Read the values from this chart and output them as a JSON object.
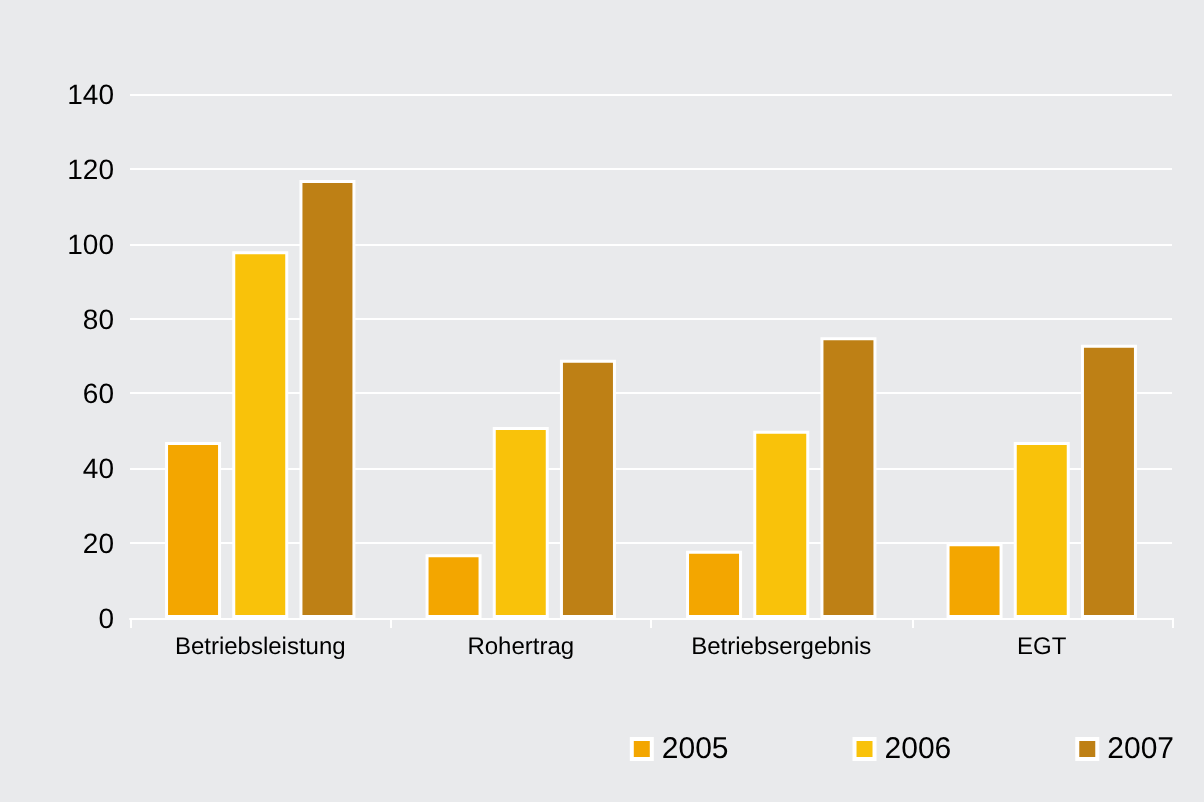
{
  "chart_data": {
    "type": "bar",
    "categories": [
      "Betriebsleistung",
      "Rohertrag",
      "Betriebsergebnis",
      "EGT"
    ],
    "series": [
      {
        "name": "2005",
        "color": "#f3a600",
        "values": [
          47,
          17,
          18,
          20
        ]
      },
      {
        "name": "2006",
        "color": "#f9c20a",
        "values": [
          98,
          51,
          50,
          47
        ]
      },
      {
        "name": "2007",
        "color": "#be8015",
        "values": [
          117,
          69,
          75,
          73
        ]
      }
    ],
    "ylim": [
      0,
      140
    ],
    "yticks": [
      0,
      20,
      40,
      60,
      80,
      100,
      120,
      140
    ],
    "grid": "y",
    "legend": "bottom right"
  }
}
